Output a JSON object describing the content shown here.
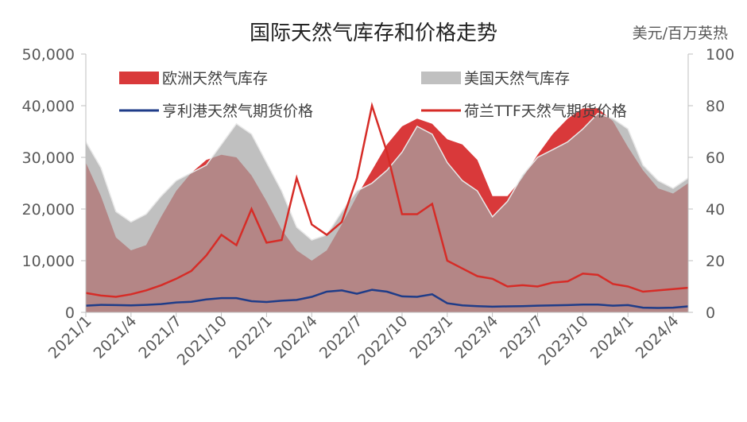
{
  "chart_data": {
    "type": "area",
    "title": "国际天然气库存和价格走势",
    "right_unit": "美元/百万英热",
    "x_start": "2021/1",
    "x_end": "2024/5",
    "x_ticks": [
      "2021/1",
      "2021/4",
      "2021/7",
      "2021/10",
      "2022/1",
      "2022/4",
      "2022/7",
      "2022/10",
      "2023/1",
      "2023/4",
      "2023/7",
      "2023/10",
      "2024/1",
      "2024/4"
    ],
    "left_axis": {
      "ylim": [
        0,
        50000
      ],
      "ticks": [
        0,
        10000,
        20000,
        30000,
        40000,
        50000
      ],
      "tick_labels": [
        "0",
        "10,000",
        "20,000",
        "30,000",
        "40,000",
        "50,000"
      ]
    },
    "right_axis": {
      "ylim": [
        0,
        100
      ],
      "ticks": [
        0,
        20,
        40,
        60,
        80,
        100
      ],
      "tick_labels": [
        "0",
        "20",
        "40",
        "60",
        "80",
        "100"
      ]
    },
    "legend_placement": "top",
    "colors": {
      "eu_storage": "#d9393a",
      "us_storage": "#c0c0c0",
      "overlap": "#b48686",
      "jkm": "#1f3c88",
      "ttf": "#d62c27",
      "axis": "#bfbfbf",
      "text": "#595959"
    },
    "series": [
      {
        "name": "欧洲天然气库存",
        "axis": "left",
        "kind": "area",
        "points": [
          [
            "2021/1",
            29000
          ],
          [
            "2021/2",
            22500
          ],
          [
            "2021/3",
            14500
          ],
          [
            "2021/4",
            12000
          ],
          [
            "2021/5",
            13000
          ],
          [
            "2021/6",
            18500
          ],
          [
            "2021/7",
            23500
          ],
          [
            "2021/8",
            27000
          ],
          [
            "2021/9",
            29500
          ],
          [
            "2021/10",
            30500
          ],
          [
            "2021/11",
            30000
          ],
          [
            "2021/12",
            26500
          ],
          [
            "2022/1",
            21500
          ],
          [
            "2022/2",
            16000
          ],
          [
            "2022/3",
            12000
          ],
          [
            "2022/4",
            10000
          ],
          [
            "2022/5",
            12000
          ],
          [
            "2022/6",
            17000
          ],
          [
            "2022/7",
            22500
          ],
          [
            "2022/8",
            27500
          ],
          [
            "2022/9",
            32500
          ],
          [
            "2022/10",
            36000
          ],
          [
            "2022/11",
            37500
          ],
          [
            "2022/12",
            36500
          ],
          [
            "2023/1",
            33500
          ],
          [
            "2023/2",
            32500
          ],
          [
            "2023/3",
            29500
          ],
          [
            "2023/4",
            22500
          ],
          [
            "2023/5",
            22500
          ],
          [
            "2023/6",
            26000
          ],
          [
            "2023/7",
            30500
          ],
          [
            "2023/8",
            34500
          ],
          [
            "2023/9",
            37500
          ],
          [
            "2023/10",
            39500
          ],
          [
            "2023/11",
            39500
          ],
          [
            "2023/12",
            37000
          ],
          [
            "2024/1",
            32000
          ],
          [
            "2024/2",
            27500
          ],
          [
            "2024/3",
            24000
          ],
          [
            "2024/4",
            23000
          ],
          [
            "2024/5",
            25000
          ]
        ]
      },
      {
        "name": "美国天然气库存",
        "axis": "left",
        "kind": "area",
        "points": [
          [
            "2021/1",
            33000
          ],
          [
            "2021/2",
            28000
          ],
          [
            "2021/3",
            19500
          ],
          [
            "2021/4",
            17500
          ],
          [
            "2021/5",
            19000
          ],
          [
            "2021/6",
            22500
          ],
          [
            "2021/7",
            25500
          ],
          [
            "2021/8",
            27000
          ],
          [
            "2021/9",
            28500
          ],
          [
            "2021/10",
            32500
          ],
          [
            "2021/11",
            36500
          ],
          [
            "2021/12",
            34500
          ],
          [
            "2022/1",
            29000
          ],
          [
            "2022/2",
            23500
          ],
          [
            "2022/3",
            16500
          ],
          [
            "2022/4",
            14000
          ],
          [
            "2022/5",
            15000
          ],
          [
            "2022/6",
            19500
          ],
          [
            "2022/7",
            23500
          ],
          [
            "2022/8",
            25000
          ],
          [
            "2022/9",
            27500
          ],
          [
            "2022/10",
            31000
          ],
          [
            "2022/11",
            36000
          ],
          [
            "2022/12",
            34500
          ],
          [
            "2023/1",
            29000
          ],
          [
            "2023/2",
            25500
          ],
          [
            "2023/3",
            23500
          ],
          [
            "2023/4",
            18500
          ],
          [
            "2023/5",
            21500
          ],
          [
            "2023/6",
            26500
          ],
          [
            "2023/7",
            30000
          ],
          [
            "2023/8",
            31500
          ],
          [
            "2023/9",
            33000
          ],
          [
            "2023/10",
            35500
          ],
          [
            "2023/11",
            38500
          ],
          [
            "2023/12",
            37500
          ],
          [
            "2024/1",
            35500
          ],
          [
            "2024/2",
            28500
          ],
          [
            "2024/3",
            25500
          ],
          [
            "2024/4",
            24000
          ],
          [
            "2024/5",
            26000
          ]
        ]
      },
      {
        "name": "亨利港天然气期货价格",
        "axis": "right",
        "kind": "line",
        "points": [
          [
            "2021/1",
            2.6
          ],
          [
            "2021/2",
            2.9
          ],
          [
            "2021/3",
            2.8
          ],
          [
            "2021/4",
            2.7
          ],
          [
            "2021/5",
            2.9
          ],
          [
            "2021/6",
            3.2
          ],
          [
            "2021/7",
            3.8
          ],
          [
            "2021/8",
            4.1
          ],
          [
            "2021/9",
            5.0
          ],
          [
            "2021/10",
            5.5
          ],
          [
            "2021/11",
            5.5
          ],
          [
            "2021/12",
            4.3
          ],
          [
            "2022/1",
            4.0
          ],
          [
            "2022/2",
            4.5
          ],
          [
            "2022/3",
            4.8
          ],
          [
            "2022/4",
            6.0
          ],
          [
            "2022/5",
            8.0
          ],
          [
            "2022/6",
            8.5
          ],
          [
            "2022/7",
            7.2
          ],
          [
            "2022/8",
            8.7
          ],
          [
            "2022/9",
            8.0
          ],
          [
            "2022/10",
            6.2
          ],
          [
            "2022/11",
            6.0
          ],
          [
            "2022/12",
            7.0
          ],
          [
            "2023/1",
            3.5
          ],
          [
            "2023/2",
            2.7
          ],
          [
            "2023/3",
            2.4
          ],
          [
            "2023/4",
            2.2
          ],
          [
            "2023/5",
            2.3
          ],
          [
            "2023/6",
            2.4
          ],
          [
            "2023/7",
            2.6
          ],
          [
            "2023/8",
            2.7
          ],
          [
            "2023/9",
            2.8
          ],
          [
            "2023/10",
            3.0
          ],
          [
            "2023/11",
            3.0
          ],
          [
            "2023/12",
            2.6
          ],
          [
            "2024/1",
            2.8
          ],
          [
            "2024/2",
            1.8
          ],
          [
            "2024/3",
            1.7
          ],
          [
            "2024/4",
            1.8
          ],
          [
            "2024/5",
            2.3
          ]
        ]
      },
      {
        "name": "荷兰TTF天然气期货价格",
        "axis": "right",
        "kind": "line",
        "points": [
          [
            "2021/1",
            7.5
          ],
          [
            "2021/2",
            6.5
          ],
          [
            "2021/3",
            6.0
          ],
          [
            "2021/4",
            7.0
          ],
          [
            "2021/5",
            8.5
          ],
          [
            "2021/6",
            10.5
          ],
          [
            "2021/7",
            13.0
          ],
          [
            "2021/8",
            16.0
          ],
          [
            "2021/9",
            22.0
          ],
          [
            "2021/10",
            30.0
          ],
          [
            "2021/11",
            26.0
          ],
          [
            "2021/12",
            40.0
          ],
          [
            "2022/1",
            27.0
          ],
          [
            "2022/2",
            28.0
          ],
          [
            "2022/3",
            52.0
          ],
          [
            "2022/4",
            34.0
          ],
          [
            "2022/5",
            30.0
          ],
          [
            "2022/6",
            35.0
          ],
          [
            "2022/7",
            52.0
          ],
          [
            "2022/8",
            80.0
          ],
          [
            "2022/9",
            62.0
          ],
          [
            "2022/10",
            38.0
          ],
          [
            "2022/11",
            38.0
          ],
          [
            "2022/12",
            42.0
          ],
          [
            "2023/1",
            20.0
          ],
          [
            "2023/2",
            17.0
          ],
          [
            "2023/3",
            14.0
          ],
          [
            "2023/4",
            13.0
          ],
          [
            "2023/5",
            10.0
          ],
          [
            "2023/6",
            10.5
          ],
          [
            "2023/7",
            10.0
          ],
          [
            "2023/8",
            11.5
          ],
          [
            "2023/9",
            12.0
          ],
          [
            "2023/10",
            15.0
          ],
          [
            "2023/11",
            14.5
          ],
          [
            "2023/12",
            11.0
          ],
          [
            "2024/1",
            10.0
          ],
          [
            "2024/2",
            8.0
          ],
          [
            "2024/3",
            8.5
          ],
          [
            "2024/4",
            9.0
          ],
          [
            "2024/5",
            9.5
          ]
        ]
      }
    ]
  }
}
